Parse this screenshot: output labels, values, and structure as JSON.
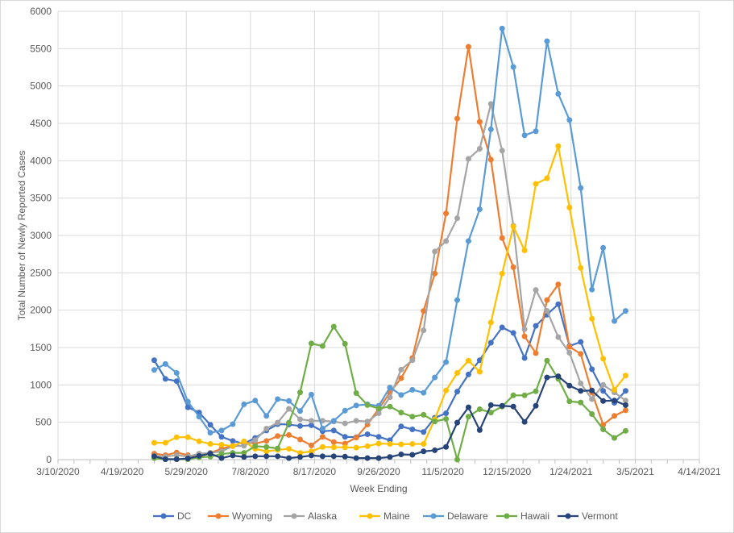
{
  "chart_data": {
    "type": "line",
    "title": "",
    "xlabel": "Week Ending",
    "ylabel": "Total Number  of Newly Reported Cases",
    "x_start_date": "2020-05-09",
    "x_step_days": 7,
    "xlim": [
      "2020-03-10",
      "2021-04-14"
    ],
    "x_ticks": [
      "3/10/2020",
      "4/19/2020",
      "5/29/2020",
      "7/8/2020",
      "8/17/2020",
      "9/26/2020",
      "11/5/2020",
      "12/15/2020",
      "1/24/2021",
      "3/5/2021",
      "4/14/2021"
    ],
    "ylim": [
      0,
      6000
    ],
    "y_ticks": [
      "0",
      "500",
      "1000",
      "1500",
      "2000",
      "2500",
      "3000",
      "3500",
      "4000",
      "4500",
      "5000",
      "5500",
      "6000"
    ],
    "grid": true,
    "legend_position": "bottom",
    "series": [
      {
        "name": "DC",
        "color": "#4472C4",
        "values": [
          1330,
          1080,
          1050,
          700,
          630,
          465,
          305,
          250,
          215,
          290,
          390,
          475,
          470,
          450,
          460,
          380,
          390,
          305,
          300,
          340,
          305,
          260,
          445,
          405,
          370,
          560,
          620,
          910,
          1140,
          1330,
          1565,
          1770,
          1695,
          1360,
          1790,
          1940,
          2080,
          1520,
          1575,
          1210,
          920,
          760,
          920
        ]
      },
      {
        "name": "Wyoming",
        "color": "#ED7D31",
        "values": [
          80,
          60,
          95,
          60,
          35,
          90,
          145,
          185,
          235,
          215,
          250,
          315,
          330,
          270,
          190,
          305,
          235,
          215,
          295,
          470,
          680,
          895,
          1090,
          1360,
          1990,
          2490,
          3295,
          4565,
          5525,
          4520,
          4015,
          2965,
          2575,
          1650,
          1425,
          2135,
          2345,
          1510,
          1415,
          900,
          465,
          585,
          660
        ]
      },
      {
        "name": "Alaska",
        "color": "#A5A5A5",
        "values": [
          50,
          40,
          60,
          40,
          80,
          90,
          110,
          180,
          185,
          260,
          415,
          495,
          680,
          540,
          520,
          520,
          510,
          485,
          520,
          510,
          620,
          835,
          1205,
          1330,
          1730,
          2785,
          2925,
          3230,
          4025,
          4160,
          4760,
          4135,
          3130,
          1745,
          2270,
          1990,
          1640,
          1430,
          1020,
          810,
          1000,
          900,
          790
        ]
      },
      {
        "name": "Maine",
        "color": "#FFC000",
        "values": [
          225,
          225,
          300,
          300,
          245,
          210,
          200,
          180,
          245,
          145,
          110,
          130,
          145,
          90,
          110,
          170,
          165,
          165,
          160,
          180,
          215,
          210,
          205,
          210,
          210,
          540,
          925,
          1160,
          1325,
          1175,
          1835,
          2490,
          3120,
          2800,
          3690,
          3765,
          4195,
          3375,
          2565,
          1885,
          1350,
          935,
          1125
        ]
      },
      {
        "name": "Delaware",
        "color": "#5B9BD5",
        "values": [
          1200,
          1280,
          1160,
          775,
          575,
          360,
          390,
          475,
          740,
          790,
          585,
          810,
          785,
          650,
          870,
          415,
          520,
          655,
          725,
          740,
          720,
          965,
          865,
          935,
          895,
          1100,
          1305,
          2135,
          2925,
          3350,
          4420,
          5770,
          5255,
          4340,
          4395,
          5600,
          4895,
          4545,
          3635,
          2275,
          2835,
          1855,
          1990
        ]
      },
      {
        "name": "Hawaii",
        "color": "#70AD47",
        "values": [
          20,
          5,
          5,
          5,
          30,
          40,
          75,
          90,
          90,
          180,
          170,
          150,
          495,
          900,
          1555,
          1520,
          1780,
          1550,
          890,
          730,
          685,
          710,
          630,
          575,
          600,
          510,
          545,
          0,
          575,
          675,
          630,
          710,
          860,
          860,
          915,
          1325,
          1080,
          780,
          765,
          610,
          405,
          290,
          385
        ]
      },
      {
        "name": "Vermont",
        "color": "#264478",
        "values": [
          45,
          5,
          5,
          15,
          50,
          80,
          20,
          55,
          35,
          45,
          45,
          45,
          20,
          35,
          55,
          45,
          45,
          40,
          20,
          20,
          20,
          35,
          70,
          65,
          110,
          125,
          170,
          495,
          700,
          395,
          730,
          720,
          710,
          505,
          720,
          1100,
          1115,
          990,
          920,
          925,
          785,
          790,
          730
        ]
      }
    ]
  }
}
